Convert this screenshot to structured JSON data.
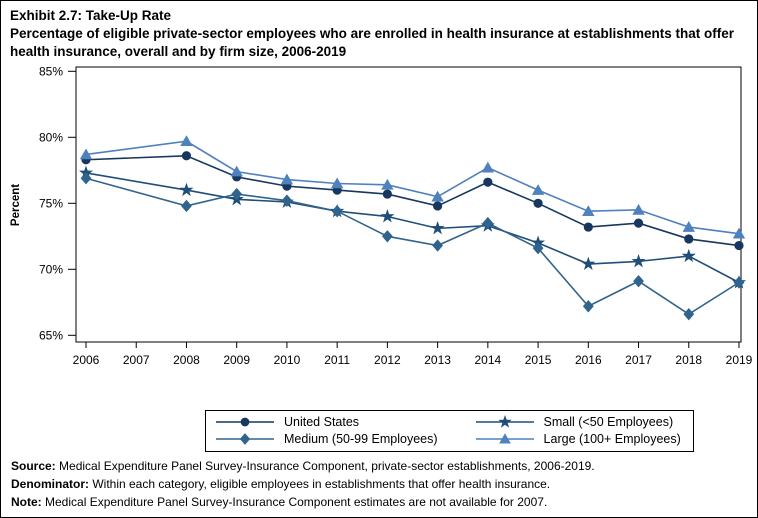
{
  "header": {
    "title": "Exhibit 2.7: Take-Up Rate",
    "subtitle": "Percentage of eligible private-sector employees who are enrolled in health insurance at establishments that offer health insurance, overall and by firm size, 2006-2019"
  },
  "chart_data": {
    "type": "line",
    "title": "Exhibit 2.7: Take-Up Rate",
    "xlabel": "",
    "ylabel": "Percent",
    "ylim": [
      65,
      85
    ],
    "yticks": [
      85,
      80,
      75,
      70,
      65
    ],
    "ytick_suffix": "%",
    "grid": false,
    "legend_position": "bottom",
    "categories": [
      "2006",
      "2007",
      "2008",
      "2009",
      "2010",
      "2011",
      "2012",
      "2013",
      "2014",
      "2015",
      "2016",
      "2017",
      "2018",
      "2019"
    ],
    "missing_year_note": "2007 estimates not available",
    "series": [
      {
        "name": "United States",
        "marker": "circle",
        "color": "#17375E",
        "values": [
          78.3,
          null,
          78.6,
          77.0,
          76.3,
          76.0,
          75.7,
          74.8,
          76.6,
          75.0,
          73.2,
          73.5,
          72.3,
          71.8
        ]
      },
      {
        "name": "Small (<50 Employees)",
        "marker": "star",
        "color": "#1F4E79",
        "values": [
          77.3,
          null,
          76.0,
          75.3,
          75.1,
          74.4,
          74.0,
          73.1,
          73.3,
          72.0,
          70.4,
          70.6,
          71.0,
          69.0
        ]
      },
      {
        "name": "Medium (50-99 Employees)",
        "marker": "diamond",
        "color": "#31648C",
        "values": [
          76.9,
          null,
          74.8,
          75.7,
          75.2,
          74.4,
          72.5,
          71.8,
          73.5,
          71.6,
          67.2,
          69.1,
          66.6,
          69.0
        ]
      },
      {
        "name": "Large (100+ Employees)",
        "marker": "triangle",
        "color": "#4F81BD",
        "values": [
          78.7,
          null,
          79.7,
          77.4,
          76.8,
          76.5,
          76.4,
          75.5,
          77.7,
          76.0,
          74.4,
          74.5,
          73.2,
          72.7
        ]
      }
    ]
  },
  "footnotes": [
    {
      "label": "Source:",
      "text": " Medical Expenditure Panel Survey-Insurance Component, private-sector establishments, 2006-2019."
    },
    {
      "label": "Denominator:",
      "text": " Within each category, eligible employees in establishments that offer health insurance."
    },
    {
      "label": "Note:",
      "text": " Medical Expenditure Panel Survey-Insurance Component estimates are not available for 2007."
    }
  ]
}
